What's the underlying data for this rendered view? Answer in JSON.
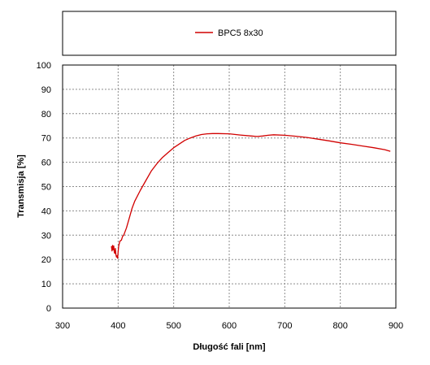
{
  "chart_data": {
    "type": "line",
    "xlabel": "Długość fali [nm]",
    "ylabel": "Transmisja [%]",
    "xlim": [
      300,
      900
    ],
    "ylim": [
      0,
      100
    ],
    "x_ticks": [
      300,
      400,
      500,
      600,
      700,
      800,
      900
    ],
    "y_ticks": [
      0,
      10,
      20,
      30,
      40,
      50,
      60,
      70,
      80,
      90,
      100
    ],
    "grid": true,
    "legend_position": "top",
    "series": [
      {
        "name": "BPC5 8x30",
        "color": "#d10000",
        "points": [
          [
            388,
            25.5
          ],
          [
            389,
            23.5
          ],
          [
            390,
            25.8
          ],
          [
            391,
            24
          ],
          [
            392,
            25.6
          ],
          [
            393,
            23
          ],
          [
            394,
            22.5
          ],
          [
            395,
            24.5
          ],
          [
            396,
            22
          ],
          [
            397,
            21
          ],
          [
            398,
            21.5
          ],
          [
            399,
            20.5
          ],
          [
            400,
            23
          ],
          [
            401,
            25.5
          ],
          [
            403,
            27.5
          ],
          [
            406,
            28
          ],
          [
            408,
            29.5
          ],
          [
            410,
            30
          ],
          [
            415,
            33
          ],
          [
            420,
            37
          ],
          [
            425,
            41
          ],
          [
            430,
            44
          ],
          [
            440,
            48.5
          ],
          [
            450,
            52.5
          ],
          [
            460,
            56.5
          ],
          [
            470,
            59.5
          ],
          [
            480,
            62
          ],
          [
            490,
            64
          ],
          [
            500,
            66
          ],
          [
            510,
            67.5
          ],
          [
            520,
            69
          ],
          [
            530,
            70
          ],
          [
            540,
            70.8
          ],
          [
            550,
            71.4
          ],
          [
            560,
            71.7
          ],
          [
            570,
            71.8
          ],
          [
            580,
            71.8
          ],
          [
            600,
            71.7
          ],
          [
            620,
            71.2
          ],
          [
            640,
            70.8
          ],
          [
            650,
            70.6
          ],
          [
            660,
            70.8
          ],
          [
            670,
            71.1
          ],
          [
            680,
            71.3
          ],
          [
            700,
            71.1
          ],
          [
            720,
            70.7
          ],
          [
            740,
            70.2
          ],
          [
            760,
            69.5
          ],
          [
            780,
            68.8
          ],
          [
            800,
            68
          ],
          [
            820,
            67.4
          ],
          [
            840,
            66.7
          ],
          [
            860,
            66
          ],
          [
            880,
            65.2
          ],
          [
            890,
            64.5
          ]
        ]
      }
    ]
  }
}
